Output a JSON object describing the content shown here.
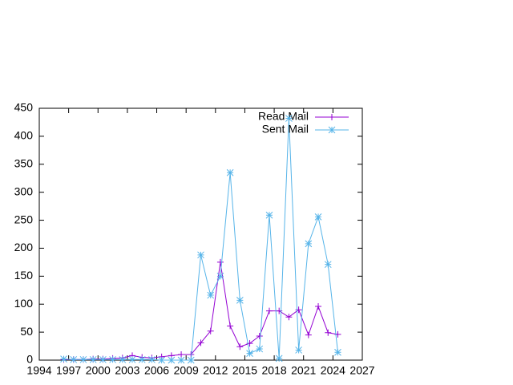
{
  "chart_data": {
    "type": "line",
    "x": [
      1996.5,
      1997.5,
      1998.5,
      1999.5,
      2000.5,
      2001.5,
      2002.5,
      2003.5,
      2004.5,
      2005.5,
      2006.5,
      2007.5,
      2008.5,
      2009.5,
      2010.5,
      2011.5,
      2012.5,
      2013.5,
      2014.5,
      2015.5,
      2016.5,
      2017.5,
      2018.5,
      2019.5,
      2020.5,
      2021.5,
      2022.5,
      2023.5,
      2024.5
    ],
    "series": [
      {
        "name": "Read Mail",
        "color": "#9400d3",
        "marker": "plus",
        "values": [
          1,
          1,
          1,
          2,
          2,
          3,
          4,
          8,
          5,
          4,
          6,
          8,
          10,
          10,
          31,
          52,
          175,
          61,
          24,
          30,
          43,
          88,
          88,
          77,
          90,
          45,
          96,
          49,
          46
        ]
      },
      {
        "name": "Sent Mail",
        "color": "#56b4e9",
        "marker": "star",
        "values": [
          2,
          1,
          1,
          1,
          1,
          1,
          1,
          1,
          1,
          1,
          0,
          0,
          0,
          0,
          188,
          116,
          150,
          335,
          107,
          12,
          20,
          259,
          3,
          432,
          18,
          208,
          256,
          171,
          14
        ]
      }
    ],
    "xlim": [
      1994,
      2027
    ],
    "xticks": [
      1994,
      1997,
      2000,
      2003,
      2006,
      2009,
      2012,
      2015,
      2018,
      2021,
      2024,
      2027
    ],
    "ylim": [
      0,
      450
    ],
    "yticks": [
      0,
      50,
      100,
      150,
      200,
      250,
      300,
      350,
      400,
      450
    ],
    "legend": "top-right"
  }
}
